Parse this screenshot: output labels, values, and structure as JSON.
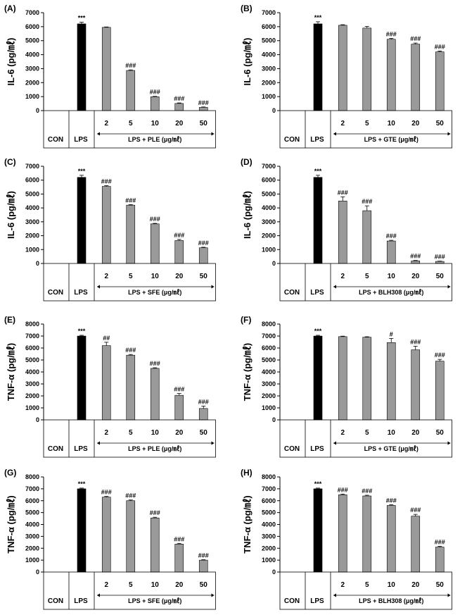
{
  "chart_data": [
    {
      "type": "bar",
      "panel": "(A)",
      "ylabel": "IL-6 (pg/㎖)",
      "ylim": [
        0,
        7000
      ],
      "yticks": [
        "0",
        "1000",
        "2000",
        "3000",
        "4000",
        "5000",
        "6000",
        "7000"
      ],
      "categories": [
        "CON",
        "LPS",
        "2",
        "5",
        "10",
        "20",
        "50"
      ],
      "values": [
        0,
        6200,
        5950,
        2870,
        990,
        510,
        230
      ],
      "errors": [
        0,
        120,
        30,
        40,
        30,
        40,
        30
      ],
      "colors": [
        "#000000",
        "#000000",
        "#9a9a9a",
        "#9a9a9a",
        "#9a9a9a",
        "#9a9a9a",
        "#9a9a9a"
      ],
      "annotations": [
        "",
        "***",
        "",
        "###",
        "###",
        "###",
        "###"
      ],
      "treatment_label": "LPS + PLE (μg/㎖)"
    },
    {
      "type": "bar",
      "panel": "(B)",
      "ylabel": "IL-6 (pg/㎖)",
      "ylim": [
        0,
        7000
      ],
      "yticks": [
        "0",
        "1000",
        "2000",
        "3000",
        "4000",
        "5000",
        "6000",
        "7000"
      ],
      "categories": [
        "CON",
        "LPS",
        "2",
        "5",
        "10",
        "20",
        "50"
      ],
      "values": [
        0,
        6200,
        6100,
        5900,
        5100,
        4750,
        4200
      ],
      "errors": [
        0,
        150,
        40,
        120,
        60,
        80,
        60
      ],
      "colors": [
        "#000000",
        "#000000",
        "#9a9a9a",
        "#9a9a9a",
        "#9a9a9a",
        "#9a9a9a",
        "#9a9a9a"
      ],
      "annotations": [
        "",
        "***",
        "",
        "",
        "###",
        "###",
        "###"
      ],
      "treatment_label": "LPS + GTE (μg/㎖)"
    },
    {
      "type": "bar",
      "panel": "(C)",
      "ylabel": "IL-6 (pg/㎖)",
      "ylim": [
        0,
        7000
      ],
      "yticks": [
        "0",
        "1000",
        "2000",
        "3000",
        "4000",
        "5000",
        "6000",
        "7000"
      ],
      "categories": [
        "CON",
        "LPS",
        "2",
        "5",
        "10",
        "20",
        "50"
      ],
      "values": [
        0,
        6200,
        5550,
        4200,
        2850,
        1650,
        1130
      ],
      "errors": [
        0,
        150,
        50,
        40,
        40,
        80,
        40
      ],
      "colors": [
        "#000000",
        "#000000",
        "#9a9a9a",
        "#9a9a9a",
        "#9a9a9a",
        "#9a9a9a",
        "#9a9a9a"
      ],
      "annotations": [
        "",
        "***",
        "###",
        "###",
        "###",
        "###",
        "###"
      ],
      "treatment_label": "LPS + SFE (μg/㎖)"
    },
    {
      "type": "bar",
      "panel": "(D)",
      "ylabel": "IL-6 (pg/㎖)",
      "ylim": [
        0,
        7000
      ],
      "yticks": [
        "0",
        "1000",
        "2000",
        "3000",
        "4000",
        "5000",
        "6000",
        "7000"
      ],
      "categories": [
        "CON",
        "LPS",
        "2",
        "5",
        "10",
        "20",
        "50"
      ],
      "values": [
        0,
        6200,
        4500,
        3800,
        1620,
        190,
        150
      ],
      "errors": [
        0,
        150,
        300,
        350,
        50,
        30,
        20
      ],
      "colors": [
        "#000000",
        "#000000",
        "#9a9a9a",
        "#9a9a9a",
        "#9a9a9a",
        "#9a9a9a",
        "#9a9a9a"
      ],
      "annotations": [
        "",
        "***",
        "###",
        "###",
        "###",
        "###",
        "###"
      ],
      "treatment_label": "LPS + BLH308 (μg/㎖)"
    },
    {
      "type": "bar",
      "panel": "(E)",
      "ylabel": "TNF-α (pg/㎖)",
      "ylim": [
        0,
        8000
      ],
      "yticks": [
        "0",
        "1000",
        "2000",
        "3000",
        "4000",
        "5000",
        "6000",
        "7000",
        "8000"
      ],
      "categories": [
        "CON",
        "LPS",
        "2",
        "5",
        "10",
        "20",
        "50"
      ],
      "values": [
        0,
        7000,
        6200,
        5400,
        4300,
        2050,
        950
      ],
      "errors": [
        0,
        60,
        280,
        60,
        50,
        150,
        200
      ],
      "colors": [
        "#000000",
        "#000000",
        "#9a9a9a",
        "#9a9a9a",
        "#9a9a9a",
        "#9a9a9a",
        "#9a9a9a"
      ],
      "annotations": [
        "",
        "***",
        "##",
        "###",
        "###",
        "###",
        "###"
      ],
      "treatment_label": "LPS + PLE (μg/㎖)"
    },
    {
      "type": "bar",
      "panel": "(F)",
      "ylabel": "TNF-α (pg/㎖)",
      "ylim": [
        0,
        8000
      ],
      "yticks": [
        "0",
        "1000",
        "2000",
        "3000",
        "4000",
        "5000",
        "6000",
        "7000",
        "8000"
      ],
      "categories": [
        "CON",
        "LPS",
        "2",
        "5",
        "10",
        "20",
        "50"
      ],
      "values": [
        0,
        7000,
        6950,
        6900,
        6450,
        5850,
        4900
      ],
      "errors": [
        0,
        60,
        40,
        40,
        350,
        300,
        150
      ],
      "colors": [
        "#000000",
        "#000000",
        "#9a9a9a",
        "#9a9a9a",
        "#9a9a9a",
        "#9a9a9a",
        "#9a9a9a"
      ],
      "annotations": [
        "",
        "***",
        "",
        "",
        "#",
        "###",
        "###"
      ],
      "treatment_label": "LPS + GTE (μg/㎖)"
    },
    {
      "type": "bar",
      "panel": "(G)",
      "ylabel": "TNF-α (pg/㎖)",
      "ylim": [
        0,
        8000
      ],
      "yticks": [
        "0",
        "1000",
        "2000",
        "3000",
        "4000",
        "5000",
        "6000",
        "7000",
        "8000"
      ],
      "categories": [
        "CON",
        "LPS",
        "2",
        "5",
        "10",
        "20",
        "50"
      ],
      "values": [
        0,
        7000,
        6300,
        6000,
        4550,
        2350,
        1000
      ],
      "errors": [
        0,
        60,
        60,
        60,
        60,
        60,
        40
      ],
      "colors": [
        "#000000",
        "#000000",
        "#9a9a9a",
        "#9a9a9a",
        "#9a9a9a",
        "#9a9a9a",
        "#9a9a9a"
      ],
      "annotations": [
        "",
        "***",
        "###",
        "###",
        "###",
        "###",
        "###"
      ],
      "treatment_label": "LPS + SFE (μg/㎖)"
    },
    {
      "type": "bar",
      "panel": "(H)",
      "ylabel": "TNF-α (pg/㎖)",
      "ylim": [
        0,
        8000
      ],
      "yticks": [
        "0",
        "1000",
        "2000",
        "3000",
        "4000",
        "5000",
        "6000",
        "7000",
        "8000"
      ],
      "categories": [
        "CON",
        "LPS",
        "2",
        "5",
        "10",
        "20",
        "50"
      ],
      "values": [
        0,
        7000,
        6500,
        6400,
        5600,
        4700,
        2100
      ],
      "errors": [
        0,
        60,
        60,
        60,
        60,
        150,
        60
      ],
      "colors": [
        "#000000",
        "#000000",
        "#9a9a9a",
        "#9a9a9a",
        "#9a9a9a",
        "#9a9a9a",
        "#9a9a9a"
      ],
      "annotations": [
        "",
        "***",
        "###",
        "###",
        "###",
        "###",
        "###"
      ],
      "treatment_label": "LPS + BLH308 (μg/㎖)"
    }
  ]
}
